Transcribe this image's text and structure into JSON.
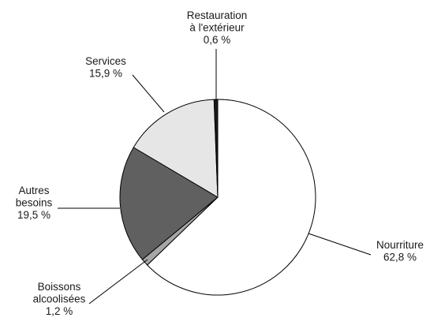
{
  "chart_data": {
    "type": "pie",
    "title": "",
    "start": "12 o'clock",
    "direction": "clockwise",
    "slices": [
      {
        "label": [
          "Nourriture"
        ],
        "value_label": "62,8 %",
        "value": 62.8,
        "color": "#ffffff"
      },
      {
        "label": [
          "Boissons",
          "alcoolisées"
        ],
        "value_label": "1,2 %",
        "value": 1.2,
        "color": "#a6a6a6"
      },
      {
        "label": [
          "Autres",
          "besoins"
        ],
        "value_label": "19,5 %",
        "value": 19.5,
        "color": "#606060"
      },
      {
        "label": [
          "Services"
        ],
        "value_label": "15,9 %",
        "value": 15.9,
        "color": "#e6e6e6"
      },
      {
        "label": [
          "Restauration",
          "à l'extérieur"
        ],
        "value_label": "0,6 %",
        "value": 0.6,
        "color": "#1a1a1a"
      }
    ]
  }
}
